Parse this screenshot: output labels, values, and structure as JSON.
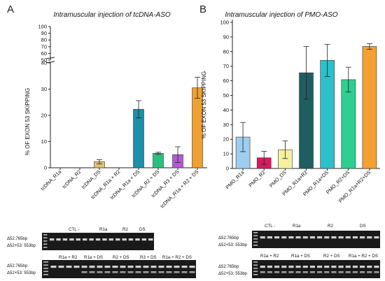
{
  "colors": {
    "axis": "#222222",
    "gel_background": "#1a1a1a",
    "gel_band": "#cfcfcf"
  },
  "chart_data": [
    {
      "panel": "A",
      "type": "bar",
      "title": "Intramuscular injection of tcDNA-ASO",
      "ylabel": "% OF EXON 53 SKIPPING",
      "y_axis_break": true,
      "ylim_lower": [
        0,
        40
      ],
      "ylim_upper": [
        50,
        100
      ],
      "yticks_lower": [
        "0",
        "10",
        "20",
        "30",
        "40"
      ],
      "yticks_upper": [
        "50",
        "60",
        "70",
        "80",
        "90",
        "100"
      ],
      "categories": [
        "tcDNA_R1a",
        "tcDNA_R2",
        "tcDNA_DS",
        "tcDNA_R1a + R2",
        "tcDNA_R1a + DS",
        "tcDNA_R2 + DS",
        "tcDNA_R3 + DS",
        "tcDNA_R1a + R2 + DS"
      ],
      "values": [
        0,
        0,
        2.3,
        0,
        22.3,
        5.5,
        5.0,
        30.5
      ],
      "errors": [
        0,
        0,
        0.8,
        0,
        3.3,
        0.4,
        3.0,
        4.0
      ],
      "colors": [
        "#f0a0a0",
        "#f0a0a0",
        "#e3c27a",
        "#d0d0d0",
        "#1e8fa8",
        "#2ebf80",
        "#b45ad2",
        "#f0a030"
      ],
      "grid": false
    },
    {
      "panel": "B",
      "type": "bar",
      "title": "Intramuscular injection of PMO-ASO",
      "ylabel": "% OF EXON 53 SKIPPING",
      "ylim": [
        0,
        100
      ],
      "yticks": [
        "0",
        "10",
        "20",
        "30",
        "40",
        "50",
        "60",
        "70",
        "80",
        "90",
        "100"
      ],
      "categories": [
        "PMO_R1a",
        "PMO_R2",
        "PMO_DS",
        "PMO_R1a+R2",
        "PMO_R1a+DS",
        "PMO_R2+DS",
        "PMO_R1a+R2+DS"
      ],
      "values": [
        21.5,
        7.3,
        12.8,
        65.5,
        74.0,
        60.8,
        83.5
      ],
      "errors": [
        10.0,
        4.5,
        6.0,
        18.0,
        11.0,
        8.5,
        2.0
      ],
      "colors": [
        "#9ecdf0",
        "#d81b60",
        "#f5f0a0",
        "#1e5e60",
        "#2cc0cc",
        "#2ecf90",
        "#f5a030"
      ],
      "grid": false
    }
  ],
  "gel_A": {
    "top_groups": [
      "CTL -",
      "R1a",
      "R2",
      "DS"
    ],
    "bottom_groups": [
      "R1a + R2",
      "R1a + DS",
      "R2 + DS",
      "R3 + DS",
      "R1a + R2 + DS"
    ],
    "band_top": "Δ52:765bp",
    "band_bottom": "Δ52+53: 553bp"
  },
  "gel_B": {
    "top_groups": [
      "CTL -",
      "R1a",
      "R2",
      "DS"
    ],
    "bottom_groups": [
      "R1a + R2",
      "R1a + DS",
      "R2 + DS",
      "R1a + R2 + DS"
    ],
    "band_top": "Δ52:765bp",
    "band_bottom": "Δ52+53: 553bp"
  }
}
